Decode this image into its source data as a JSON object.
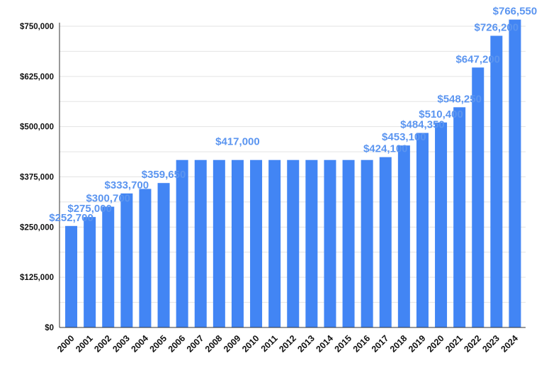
{
  "chart_data": {
    "type": "bar",
    "title": "",
    "xlabel": "",
    "ylabel": "",
    "categories": [
      "2000",
      "2001",
      "2002",
      "2003",
      "2004",
      "2005",
      "2006",
      "2007",
      "2008",
      "2009",
      "2010",
      "2011",
      "2012",
      "2013",
      "2014",
      "2015",
      "2016",
      "2017",
      "2018",
      "2019",
      "2020",
      "2021",
      "2022",
      "2023",
      "2024"
    ],
    "values": [
      252700,
      275000,
      300700,
      333700,
      345000,
      359650,
      417000,
      417000,
      417000,
      417000,
      417000,
      417000,
      417000,
      417000,
      417000,
      417000,
      417000,
      424100,
      453100,
      484350,
      510400,
      548250,
      647200,
      726200,
      766550
    ],
    "data_labels": [
      {
        "index": 0,
        "text": "$252,700"
      },
      {
        "index": 1,
        "text": "$275,000"
      },
      {
        "index": 2,
        "text": "$300,700"
      },
      {
        "index": 3,
        "text": "$333,700"
      },
      {
        "index": 5,
        "text": "$359,650"
      },
      {
        "index": 9,
        "text": "$417,000"
      },
      {
        "index": 17,
        "text": "$424,100"
      },
      {
        "index": 18,
        "text": "$453,100"
      },
      {
        "index": 19,
        "text": "$484,350"
      },
      {
        "index": 20,
        "text": "$510,400"
      },
      {
        "index": 21,
        "text": "$548,250"
      },
      {
        "index": 22,
        "text": "$647,200"
      },
      {
        "index": 23,
        "text": "$726,200"
      },
      {
        "index": 24,
        "text": "$766,550"
      }
    ],
    "yticks": [
      0,
      125000,
      250000,
      375000,
      500000,
      625000,
      750000
    ],
    "ytick_labels": [
      "$0",
      "$125,000",
      "$250,000",
      "$375,000",
      "$500,000",
      "$625,000",
      "$750,000"
    ],
    "ylim": [
      0,
      780000
    ],
    "grid": true,
    "colors": {
      "bar": "#4285f4",
      "label": "#5b95f0",
      "grid": "#e3e3e3",
      "axis": "#333333"
    }
  }
}
